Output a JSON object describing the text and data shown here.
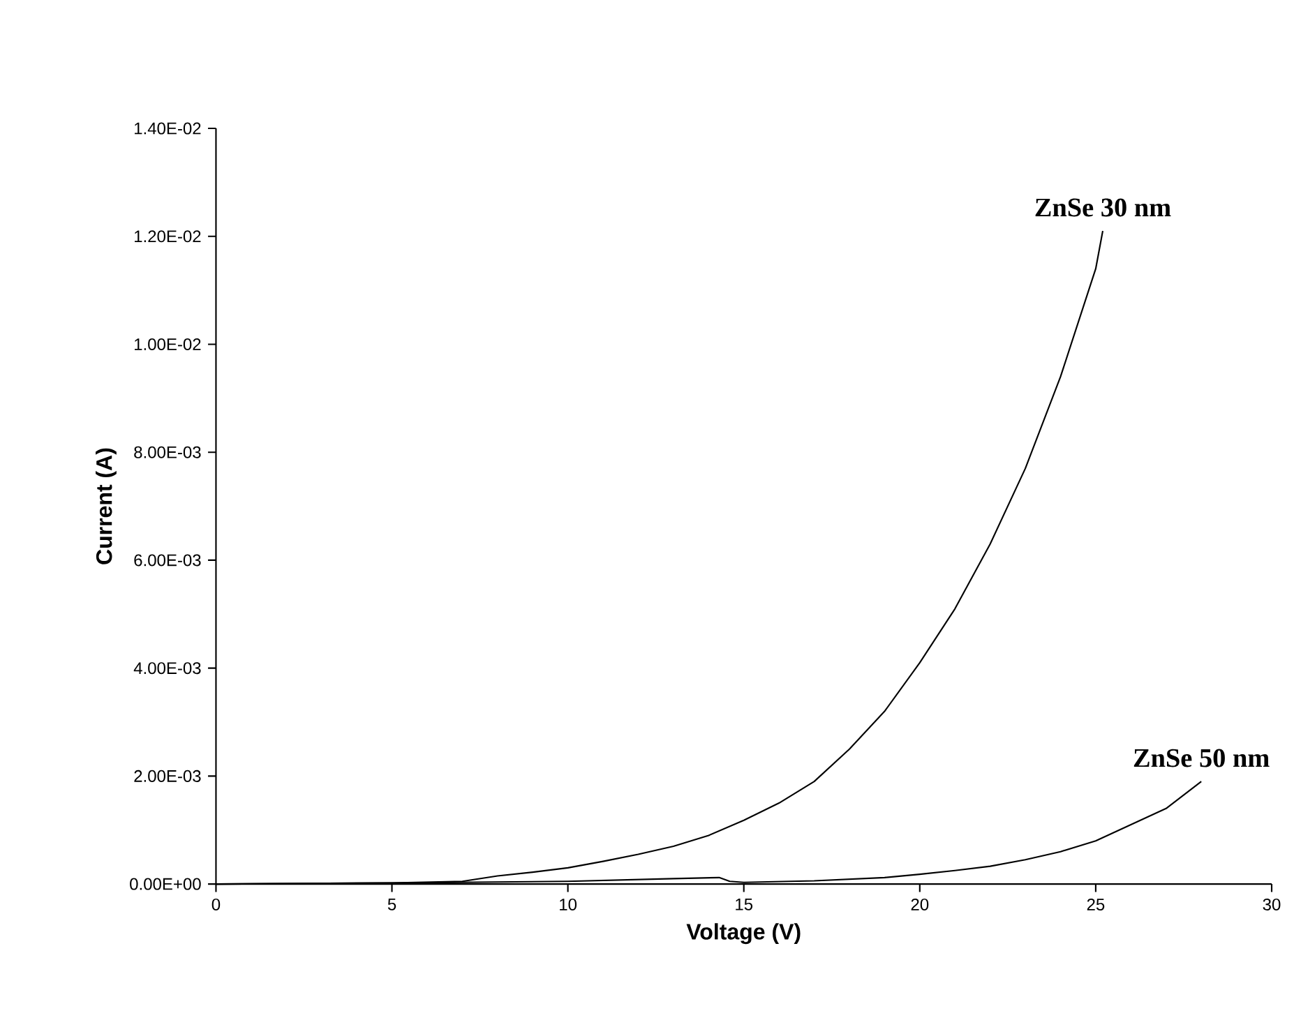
{
  "chart_data": {
    "type": "line",
    "xlabel": "Voltage (V)",
    "ylabel": "Current (A)",
    "xlim": [
      0,
      30
    ],
    "xticks": [
      0,
      5,
      10,
      15,
      20,
      25,
      30
    ],
    "ylim": [
      0,
      0.014
    ],
    "yticks": [
      {
        "value": 0,
        "label": "0.00E+00"
      },
      {
        "value": 0.002,
        "label": "2.00E-03"
      },
      {
        "value": 0.004,
        "label": "4.00E-03"
      },
      {
        "value": 0.006,
        "label": "6.00E-03"
      },
      {
        "value": 0.008,
        "label": "8.00E-03"
      },
      {
        "value": 0.01,
        "label": "1.00E-02"
      },
      {
        "value": 0.012,
        "label": "1.20E-02"
      },
      {
        "value": 0.014,
        "label": "1.40E-02"
      }
    ],
    "grid": false,
    "marker": "none",
    "line_style": "solid",
    "series": [
      {
        "name": "ZnSe 30 nm",
        "color": "#000000",
        "x": [
          0,
          5,
          7,
          8,
          9,
          10,
          11,
          12,
          13,
          14,
          15,
          16,
          17,
          18,
          19,
          20,
          21,
          22,
          23,
          24,
          25,
          25.2
        ],
        "values": [
          0,
          2e-05,
          5e-05,
          0.00015,
          0.00022,
          0.0003,
          0.00042,
          0.00055,
          0.0007,
          0.0009,
          0.00118,
          0.0015,
          0.0019,
          0.0025,
          0.0032,
          0.0041,
          0.0051,
          0.0063,
          0.0077,
          0.0094,
          0.0114,
          0.0121
        ]
      },
      {
        "name": "ZnSe 50 nm",
        "color": "#000000",
        "x": [
          0,
          5,
          10,
          13,
          14.3,
          14.6,
          15,
          17,
          19,
          20,
          21,
          22,
          23,
          24,
          25,
          26,
          27,
          28
        ],
        "values": [
          0,
          2e-05,
          5e-05,
          0.0001,
          0.00012,
          5e-05,
          3e-05,
          6e-05,
          0.00012,
          0.00018,
          0.00025,
          0.00033,
          0.00045,
          0.0006,
          0.0008,
          0.0011,
          0.0014,
          0.0019
        ]
      }
    ]
  }
}
